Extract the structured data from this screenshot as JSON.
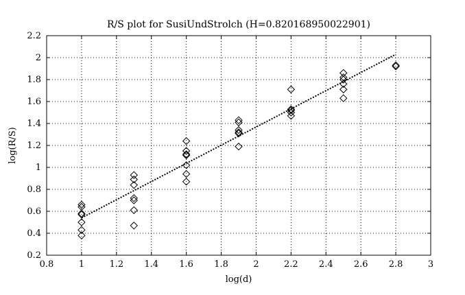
{
  "chart_data": {
    "type": "scatter",
    "title": "R/S plot for SusiUndStrolch (H=0.820168950022901)",
    "xlabel": "log(d)",
    "ylabel": "log(R/S)",
    "xlim": [
      0.8,
      3
    ],
    "ylim": [
      0.2,
      2.2
    ],
    "xticks": [
      "0.8",
      "1",
      "1.2",
      "1.4",
      "1.6",
      "1.8",
      "2",
      "2.2",
      "2.4",
      "2.6",
      "2.8",
      "3"
    ],
    "yticks": [
      "0.2",
      "0.4",
      "0.6",
      "0.8",
      "1",
      "1.2",
      "1.4",
      "1.6",
      "1.8",
      "2",
      "2.2"
    ],
    "grid": true,
    "legend": "none",
    "marker": "diamond",
    "points": [
      {
        "x": 1.0,
        "y": 0.66
      },
      {
        "x": 1.0,
        "y": 0.64
      },
      {
        "x": 1.0,
        "y": 0.58
      },
      {
        "x": 1.0,
        "y": 0.57
      },
      {
        "x": 1.0,
        "y": 0.5
      },
      {
        "x": 1.0,
        "y": 0.43
      },
      {
        "x": 1.0,
        "y": 0.38
      },
      {
        "x": 1.3,
        "y": 0.93
      },
      {
        "x": 1.3,
        "y": 0.89
      },
      {
        "x": 1.3,
        "y": 0.84
      },
      {
        "x": 1.3,
        "y": 0.72
      },
      {
        "x": 1.3,
        "y": 0.7
      },
      {
        "x": 1.3,
        "y": 0.61
      },
      {
        "x": 1.3,
        "y": 0.47
      },
      {
        "x": 1.6,
        "y": 1.24
      },
      {
        "x": 1.6,
        "y": 1.15
      },
      {
        "x": 1.6,
        "y": 1.12
      },
      {
        "x": 1.6,
        "y": 1.11
      },
      {
        "x": 1.6,
        "y": 1.02
      },
      {
        "x": 1.6,
        "y": 0.94
      },
      {
        "x": 1.6,
        "y": 0.87
      },
      {
        "x": 1.9,
        "y": 1.43
      },
      {
        "x": 1.9,
        "y": 1.41
      },
      {
        "x": 1.9,
        "y": 1.34
      },
      {
        "x": 1.9,
        "y": 1.32
      },
      {
        "x": 1.9,
        "y": 1.31
      },
      {
        "x": 1.9,
        "y": 1.19
      },
      {
        "x": 2.2,
        "y": 1.71
      },
      {
        "x": 2.2,
        "y": 1.53
      },
      {
        "x": 2.2,
        "y": 1.52
      },
      {
        "x": 2.2,
        "y": 1.5
      },
      {
        "x": 2.2,
        "y": 1.47
      },
      {
        "x": 2.5,
        "y": 1.86
      },
      {
        "x": 2.5,
        "y": 1.82
      },
      {
        "x": 2.5,
        "y": 1.8
      },
      {
        "x": 2.5,
        "y": 1.76
      },
      {
        "x": 2.5,
        "y": 1.71
      },
      {
        "x": 2.5,
        "y": 1.63
      },
      {
        "x": 2.8,
        "y": 1.93
      },
      {
        "x": 2.8,
        "y": 1.92
      }
    ],
    "fit_line": {
      "x": [
        1.0,
        2.8
      ],
      "y": [
        0.54,
        2.03
      ],
      "style": "dotted"
    }
  }
}
